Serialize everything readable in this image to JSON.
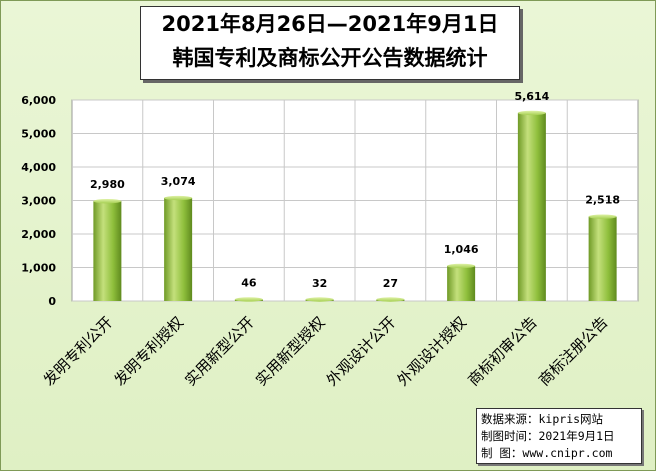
{
  "title": {
    "line1": "2021年8月26日—2021年9月1日",
    "line2": "韩国专利及商标公开公告数据统计"
  },
  "source": {
    "line1": "数据来源：kipris网站",
    "line2": "制图时间：2021年9月1日",
    "line3": "制    图：www.cnipr.com"
  },
  "colors": {
    "bar_light": "#c4e07c",
    "bar_mid": "#8fbf3c",
    "bar_dark": "#5f8a1e",
    "plot_bg": "#ffffff",
    "grid": "#c8c8c8"
  },
  "chart_data": {
    "type": "bar",
    "categories": [
      "发明专利公开",
      "发明专利授权",
      "实用新型公开",
      "实用新型授权",
      "外观设计公开",
      "外观设计授权",
      "商标初审公告",
      "商标注册公告"
    ],
    "values": [
      2980,
      3074,
      46,
      32,
      27,
      1046,
      5614,
      2518
    ],
    "data_labels": [
      "2,980",
      "3,074",
      "46",
      "32",
      "27",
      "1,046",
      "5,614",
      "2,518"
    ],
    "ylim": [
      0,
      6000
    ],
    "yticks": [
      0,
      1000,
      2000,
      3000,
      4000,
      5000,
      6000
    ],
    "ytick_labels": [
      "0",
      "1,000",
      "2,000",
      "3,000",
      "4,000",
      "5,000",
      "6,000"
    ],
    "grid": true,
    "legend": "none"
  }
}
